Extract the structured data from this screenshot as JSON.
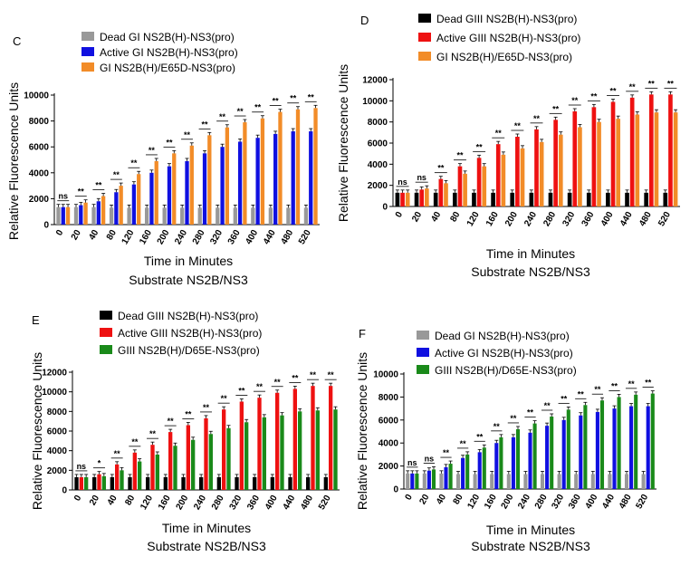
{
  "chart_data": [
    {
      "panel": "C",
      "type": "bar",
      "xlabel": "Time in Minutes",
      "subtitle": "Substrate NS2B/NS3",
      "ylabel": "Relative Fluorescence Units",
      "ylim": [
        0,
        10000
      ],
      "yticks": [
        0,
        2000,
        4000,
        6000,
        8000,
        10000
      ],
      "categories": [
        "0",
        "20",
        "40",
        "80",
        "120",
        "160",
        "200",
        "240",
        "280",
        "320",
        "360",
        "400",
        "440",
        "480",
        "520"
      ],
      "series": [
        {
          "name": "Dead GI NS2B(H)-NS3(pro)",
          "color": "#999999",
          "values": [
            1350,
            1350,
            1350,
            1300,
            1300,
            1300,
            1300,
            1300,
            1300,
            1300,
            1300,
            1300,
            1300,
            1300,
            1300
          ]
        },
        {
          "name": "Active GI NS2B(H)-NS3(pro)",
          "color": "#1010e0",
          "values": [
            1350,
            1500,
            1800,
            2500,
            3100,
            4000,
            4500,
            4900,
            5500,
            6000,
            6400,
            6700,
            7000,
            7200,
            7200
          ]
        },
        {
          "name": "GI NS2B(H)/E65D-NS3(pro)",
          "color": "#f28c28",
          "values": [
            1350,
            1700,
            2200,
            3000,
            3900,
            4900,
            5500,
            6100,
            6900,
            7500,
            7900,
            8200,
            8700,
            8900,
            9000
          ]
        }
      ],
      "significance": [
        "ns",
        "**",
        "**",
        "**",
        "**",
        "**",
        "**",
        "**",
        "**",
        "**",
        "**",
        "**",
        "**",
        "**",
        "**"
      ]
    },
    {
      "panel": "D",
      "type": "bar",
      "xlabel": "Time in Minutes",
      "subtitle": "Substrate NS2B/NS3",
      "ylabel": "Relative Fluorescence Units",
      "ylim": [
        0,
        12000
      ],
      "yticks": [
        0,
        2000,
        4000,
        6000,
        8000,
        10000,
        12000
      ],
      "categories": [
        "0",
        "20",
        "40",
        "80",
        "120",
        "160",
        "200",
        "240",
        "280",
        "320",
        "360",
        "400",
        "440",
        "480",
        "520"
      ],
      "series": [
        {
          "name": "Dead GIII NS2B(H)-NS3(pro)",
          "color": "#000000",
          "values": [
            1300,
            1300,
            1300,
            1300,
            1300,
            1300,
            1300,
            1300,
            1300,
            1300,
            1300,
            1300,
            1300,
            1300,
            1300
          ]
        },
        {
          "name": "Active GIII NS2B(H)-NS3(pro)",
          "color": "#ee1111",
          "values": [
            1300,
            1600,
            2600,
            3800,
            4600,
            5900,
            6600,
            7300,
            8200,
            9000,
            9400,
            9900,
            10300,
            10600,
            10600
          ]
        },
        {
          "name": "GI NS2B(H)/E65D-NS3(pro)",
          "color": "#f28c28",
          "values": [
            1300,
            1700,
            2200,
            3100,
            3800,
            4900,
            5500,
            6100,
            6800,
            7500,
            8000,
            8300,
            8700,
            8900,
            8900
          ]
        }
      ],
      "significance": [
        "ns",
        "ns",
        "**",
        "**",
        "**",
        "**",
        "**",
        "**",
        "**",
        "**",
        "**",
        "**",
        "**",
        "**",
        "**"
      ]
    },
    {
      "panel": "E",
      "type": "bar",
      "xlabel": "Time in Minutes",
      "subtitle": "Substrate NS2B/NS3",
      "ylabel": "Relative Fluorescence Units",
      "ylim": [
        0,
        12000
      ],
      "yticks": [
        0,
        2000,
        4000,
        6000,
        8000,
        10000,
        12000
      ],
      "categories": [
        "0",
        "20",
        "40",
        "80",
        "120",
        "160",
        "200",
        "240",
        "280",
        "320",
        "360",
        "400",
        "440",
        "480",
        "520"
      ],
      "series": [
        {
          "name": "Dead GIII NS2B(H)-NS3(pro)",
          "color": "#000000",
          "values": [
            1300,
            1300,
            1300,
            1300,
            1300,
            1300,
            1300,
            1300,
            1300,
            1300,
            1300,
            1300,
            1300,
            1300,
            1300
          ]
        },
        {
          "name": "Active GIII NS2B(H)-NS3(pro)",
          "color": "#ee1111",
          "values": [
            1300,
            1600,
            2600,
            3800,
            4600,
            5900,
            6600,
            7300,
            8200,
            9000,
            9400,
            9900,
            10300,
            10600,
            10600
          ]
        },
        {
          "name": "GIII NS2B(H)/D65E-NS3(pro)",
          "color": "#1a8a1a",
          "values": [
            1300,
            1400,
            2000,
            2900,
            3600,
            4500,
            5100,
            5700,
            6300,
            6900,
            7400,
            7600,
            8000,
            8100,
            8200
          ]
        }
      ],
      "significance": [
        "ns",
        "*",
        "**",
        "**",
        "**",
        "**",
        "**",
        "**",
        "**",
        "**",
        "**",
        "**",
        "**",
        "**",
        "**"
      ]
    },
    {
      "panel": "F",
      "type": "bar",
      "xlabel": "Time in Minutes",
      "subtitle": "Substrate NS2B/NS3",
      "ylabel": "Relative Fluorescence Units",
      "ylim": [
        0,
        10000
      ],
      "yticks": [
        0,
        2000,
        4000,
        6000,
        8000,
        10000
      ],
      "categories": [
        "0",
        "20",
        "40",
        "80",
        "120",
        "160",
        "200",
        "240",
        "280",
        "320",
        "360",
        "400",
        "440",
        "480",
        "520"
      ],
      "series": [
        {
          "name": "Dead GI NS2B(H)-NS3(pro)",
          "color": "#999999",
          "values": [
            1350,
            1350,
            1350,
            1300,
            1300,
            1300,
            1300,
            1300,
            1300,
            1300,
            1300,
            1300,
            1300,
            1300,
            1300
          ]
        },
        {
          "name": "Active GI NS2B(H)-NS3(pro)",
          "color": "#1010e0",
          "values": [
            1350,
            1600,
            1900,
            2700,
            3200,
            4000,
            4500,
            4900,
            5500,
            6000,
            6400,
            6700,
            7000,
            7200,
            7200
          ]
        },
        {
          "name": "GIII NS2B(H)/D65E-NS3(pro)",
          "color": "#1a8a1a",
          "values": [
            1350,
            1700,
            2200,
            3000,
            3600,
            4500,
            5200,
            5700,
            6300,
            6900,
            7300,
            7700,
            8000,
            8200,
            8300
          ]
        }
      ],
      "significance": [
        "ns",
        "ns",
        "**",
        "**",
        "**",
        "**",
        "**",
        "**",
        "**",
        "**",
        "**",
        "**",
        "**",
        "**",
        "**"
      ]
    }
  ]
}
